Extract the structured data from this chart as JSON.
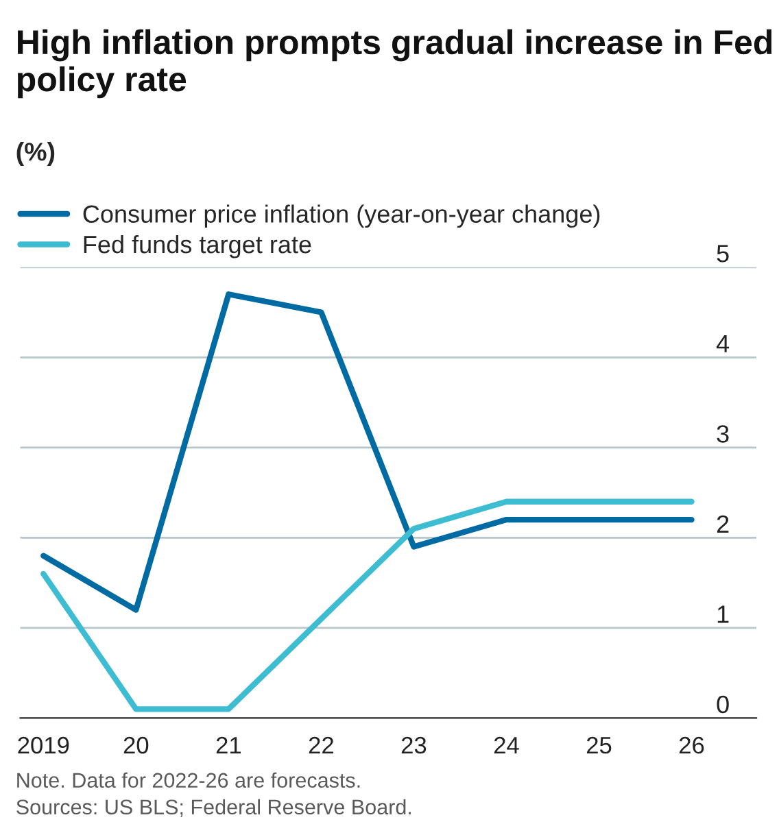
{
  "chart_data": {
    "type": "line",
    "title": "High inflation prompts gradual increase in Fed policy rate",
    "subtitle": "(%)",
    "x": [
      2019,
      2020,
      2021,
      2022,
      2023,
      2024,
      2025,
      2026
    ],
    "series": [
      {
        "name": "Consumer price inflation (year-on-year change)",
        "color": "#006ba2",
        "values": [
          1.8,
          1.2,
          4.7,
          4.5,
          1.9,
          2.2,
          2.2,
          2.2
        ]
      },
      {
        "name": "Fed funds target rate",
        "color": "#3ebcd2",
        "values": [
          1.6,
          0.1,
          0.1,
          1.1,
          2.1,
          2.4,
          2.4,
          2.4
        ]
      }
    ],
    "xlim": [
      2018.75,
      2026.7
    ],
    "xticks": [
      2019,
      {
        "value": 2020,
        "label": "20"
      },
      {
        "value": 2021,
        "label": "21"
      },
      {
        "value": 2022,
        "label": "22"
      },
      {
        "value": 2023,
        "label": "23"
      },
      {
        "value": 2024,
        "label": "24"
      },
      {
        "value": 2025,
        "label": "25"
      },
      {
        "value": 2026,
        "label": "26"
      }
    ],
    "ylim": [
      0,
      5
    ],
    "yticks": [
      0,
      1,
      2,
      3,
      4,
      5
    ],
    "grid": "y",
    "legend": "top left",
    "marker": "none",
    "line_style": "solid",
    "annotations": [
      "Note. Data for 2022-26 are forecasts.",
      "Sources: US BLS; Federal Reserve Board."
    ]
  }
}
